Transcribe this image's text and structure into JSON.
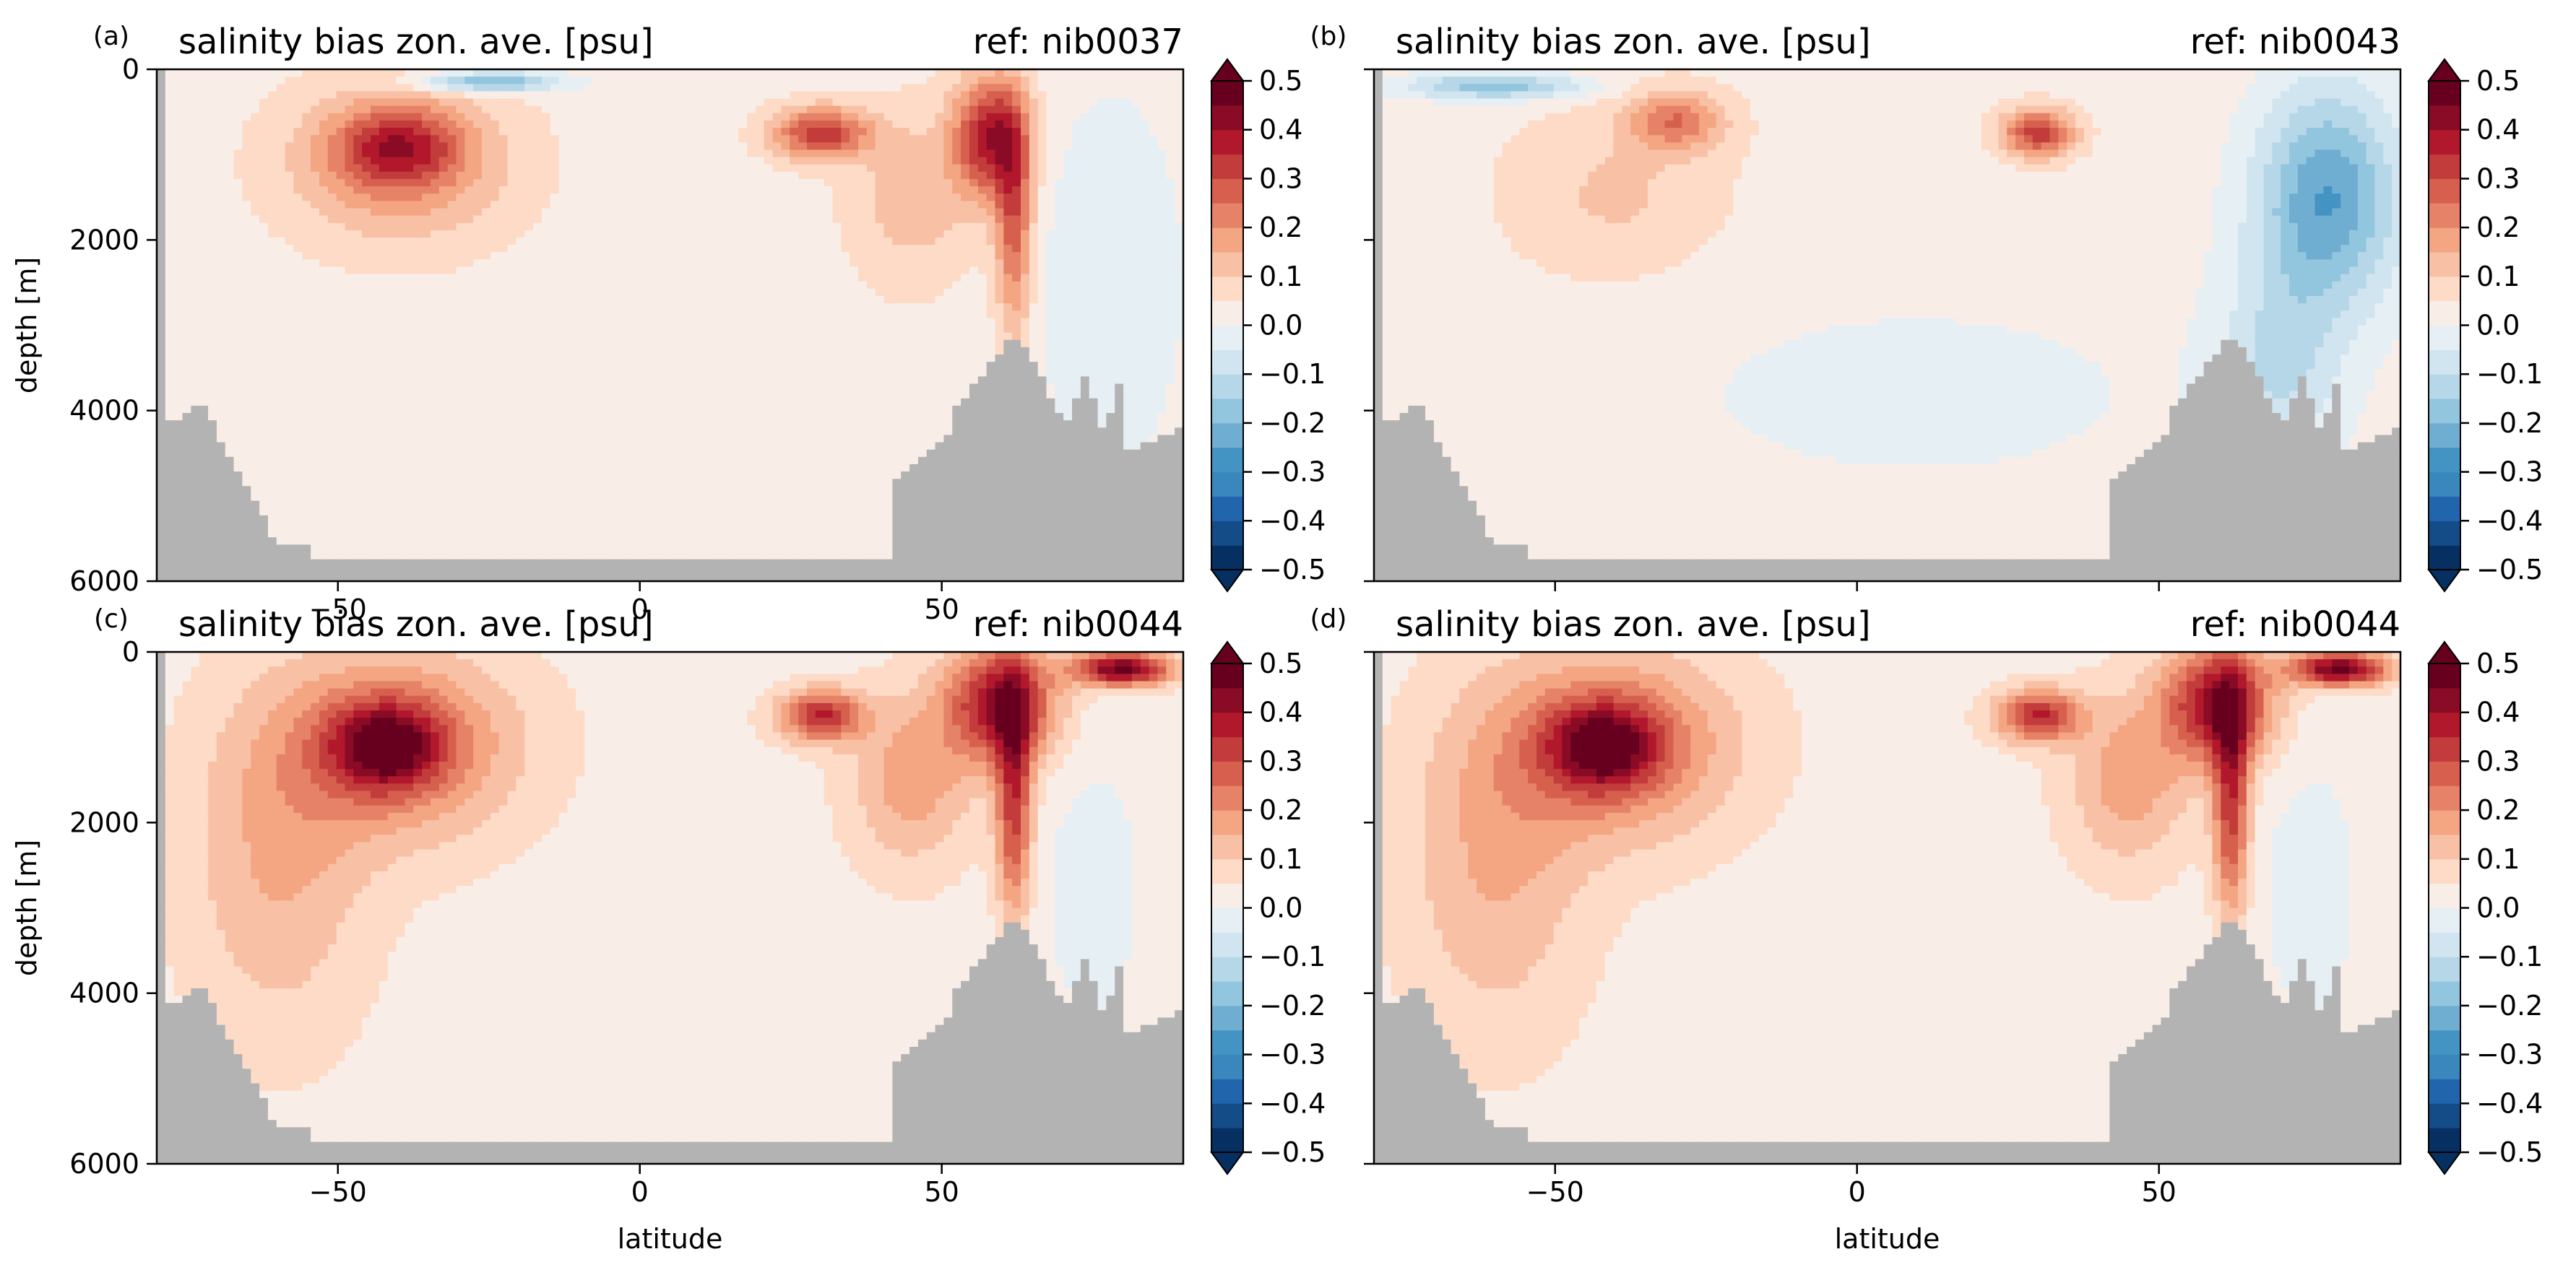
{
  "chart_data": [
    {
      "type": "heatmap",
      "panel_letter": "(a)",
      "title": "salinity bias zon. ave. [psu]",
      "ref_label": "ref: nib0037",
      "xlabel": "",
      "ylabel": "depth [m]",
      "xlim": [
        -80,
        90
      ],
      "ylim": [
        6000,
        0
      ],
      "xticks": [
        "−50",
        "0",
        "50"
      ],
      "yticks": [
        "0",
        "2000",
        "4000",
        "6000"
      ],
      "x_tick_values": [
        -50,
        0,
        50
      ],
      "y_tick_values": [
        0,
        2000,
        4000,
        6000
      ],
      "features": [
        {
          "lat": -40,
          "depth": 1100,
          "rx": 18,
          "ry": 900,
          "value": 0.18
        },
        {
          "lat": -40,
          "depth": 900,
          "rx": 10,
          "ry": 450,
          "value": 0.22
        },
        {
          "lat": 30,
          "depth": 750,
          "rx": 8,
          "ry": 300,
          "value": 0.3
        },
        {
          "lat": 58,
          "depth": 800,
          "rx": 6,
          "ry": 700,
          "value": 0.35
        },
        {
          "lat": 62,
          "depth": 1800,
          "rx": 3,
          "ry": 1300,
          "value": 0.25
        },
        {
          "lat": 78,
          "depth": 2500,
          "rx": 12,
          "ry": 2200,
          "value": -0.08
        },
        {
          "lat": -25,
          "depth": 150,
          "rx": 12,
          "ry": 120,
          "value": -0.25
        },
        {
          "lat": 45,
          "depth": 1500,
          "rx": 10,
          "ry": 1000,
          "value": 0.1
        }
      ]
    },
    {
      "type": "heatmap",
      "panel_letter": "(b)",
      "title": "salinity bias zon. ave. [psu]",
      "ref_label": "ref: nib0043",
      "xlabel": "",
      "ylabel": "",
      "xlim": [
        -80,
        90
      ],
      "ylim": [
        6000,
        0
      ],
      "xticks": [
        "",
        "",
        ""
      ],
      "yticks": [
        "",
        "",
        "",
        ""
      ],
      "x_tick_values": [
        -50,
        0,
        50
      ],
      "y_tick_values": [
        0,
        2000,
        4000,
        6000
      ],
      "features": [
        {
          "lat": -30,
          "depth": 600,
          "rx": 8,
          "ry": 350,
          "value": 0.2
        },
        {
          "lat": -40,
          "depth": 1500,
          "rx": 18,
          "ry": 1000,
          "value": 0.08
        },
        {
          "lat": 30,
          "depth": 750,
          "rx": 6,
          "ry": 280,
          "value": 0.3
        },
        {
          "lat": 78,
          "depth": 1500,
          "rx": 12,
          "ry": 1300,
          "value": -0.28
        },
        {
          "lat": 70,
          "depth": 3500,
          "rx": 10,
          "ry": 1200,
          "value": -0.12
        },
        {
          "lat": -60,
          "depth": 200,
          "rx": 15,
          "ry": 150,
          "value": -0.22
        },
        {
          "lat": 10,
          "depth": 3800,
          "rx": 60,
          "ry": 1600,
          "value": -0.04
        }
      ]
    },
    {
      "type": "heatmap",
      "panel_letter": "(c)",
      "title": "salinity bias zon. ave. [psu]",
      "ref_label": "ref: nib0044",
      "xlabel": "latitude",
      "ylabel": "depth [m]",
      "xlim": [
        -80,
        90
      ],
      "ylim": [
        6000,
        0
      ],
      "xticks": [
        "−50",
        "0",
        "50"
      ],
      "yticks": [
        "0",
        "2000",
        "4000",
        "6000"
      ],
      "x_tick_values": [
        -50,
        0,
        50
      ],
      "y_tick_values": [
        0,
        2000,
        4000,
        6000
      ],
      "features": [
        {
          "lat": -40,
          "depth": 1100,
          "rx": 20,
          "ry": 1100,
          "value": 0.22
        },
        {
          "lat": -42,
          "depth": 1100,
          "rx": 9,
          "ry": 500,
          "value": 0.3
        },
        {
          "lat": 30,
          "depth": 750,
          "rx": 7,
          "ry": 300,
          "value": 0.32
        },
        {
          "lat": 60,
          "depth": 600,
          "rx": 9,
          "ry": 700,
          "value": 0.38
        },
        {
          "lat": 62,
          "depth": 1800,
          "rx": 3,
          "ry": 1300,
          "value": 0.3
        },
        {
          "lat": 80,
          "depth": 200,
          "rx": 8,
          "ry": 200,
          "value": 0.45
        },
        {
          "lat": 75,
          "depth": 2800,
          "rx": 10,
          "ry": 2000,
          "value": -0.05
        },
        {
          "lat": 45,
          "depth": 1500,
          "rx": 10,
          "ry": 1000,
          "value": 0.15
        },
        {
          "lat": -60,
          "depth": 2500,
          "rx": 15,
          "ry": 2000,
          "value": 0.12
        }
      ]
    },
    {
      "type": "heatmap",
      "panel_letter": "(d)",
      "title": "salinity bias zon. ave. [psu]",
      "ref_label": "ref: nib0044",
      "xlabel": "latitude",
      "ylabel": "",
      "xlim": [
        -80,
        90
      ],
      "ylim": [
        6000,
        0
      ],
      "xticks": [
        "−50",
        "0",
        "50"
      ],
      "yticks": [
        "",
        "",
        "",
        ""
      ],
      "x_tick_values": [
        -50,
        0,
        50
      ],
      "y_tick_values": [
        0,
        2000,
        4000,
        6000
      ],
      "features": [
        {
          "lat": -40,
          "depth": 1100,
          "rx": 20,
          "ry": 1100,
          "value": 0.22
        },
        {
          "lat": -42,
          "depth": 1100,
          "rx": 9,
          "ry": 500,
          "value": 0.3
        },
        {
          "lat": 30,
          "depth": 750,
          "rx": 7,
          "ry": 300,
          "value": 0.32
        },
        {
          "lat": 60,
          "depth": 600,
          "rx": 9,
          "ry": 700,
          "value": 0.38
        },
        {
          "lat": 62,
          "depth": 1800,
          "rx": 3,
          "ry": 1300,
          "value": 0.3
        },
        {
          "lat": 80,
          "depth": 200,
          "rx": 8,
          "ry": 200,
          "value": 0.45
        },
        {
          "lat": 75,
          "depth": 2800,
          "rx": 10,
          "ry": 2000,
          "value": -0.05
        },
        {
          "lat": 45,
          "depth": 1500,
          "rx": 10,
          "ry": 1000,
          "value": 0.15
        },
        {
          "lat": -60,
          "depth": 2500,
          "rx": 15,
          "ry": 2000,
          "value": 0.12
        }
      ]
    }
  ],
  "colorbar": {
    "labels": [
      "0.5",
      "0.4",
      "0.3",
      "0.2",
      "0.1",
      "0.0",
      "−0.1",
      "−0.2",
      "−0.3",
      "−0.4",
      "−0.5"
    ],
    "min": -0.5,
    "max": 0.5,
    "levels": 20,
    "colors": [
      "#053061",
      "#134c87",
      "#2166ac",
      "#3a87be",
      "#4393c3",
      "#6fadd1",
      "#92c5de",
      "#b6d7e8",
      "#d1e5f0",
      "#e6eff4",
      "#f9eee7",
      "#fddbc7",
      "#f8c0a4",
      "#f4a582",
      "#e58267",
      "#d6604d",
      "#c33c3c",
      "#b2182b",
      "#8a0b25",
      "#67001f"
    ],
    "under_color": "#053061",
    "over_color": "#67001f"
  },
  "mask_color": "#b3b3b3"
}
